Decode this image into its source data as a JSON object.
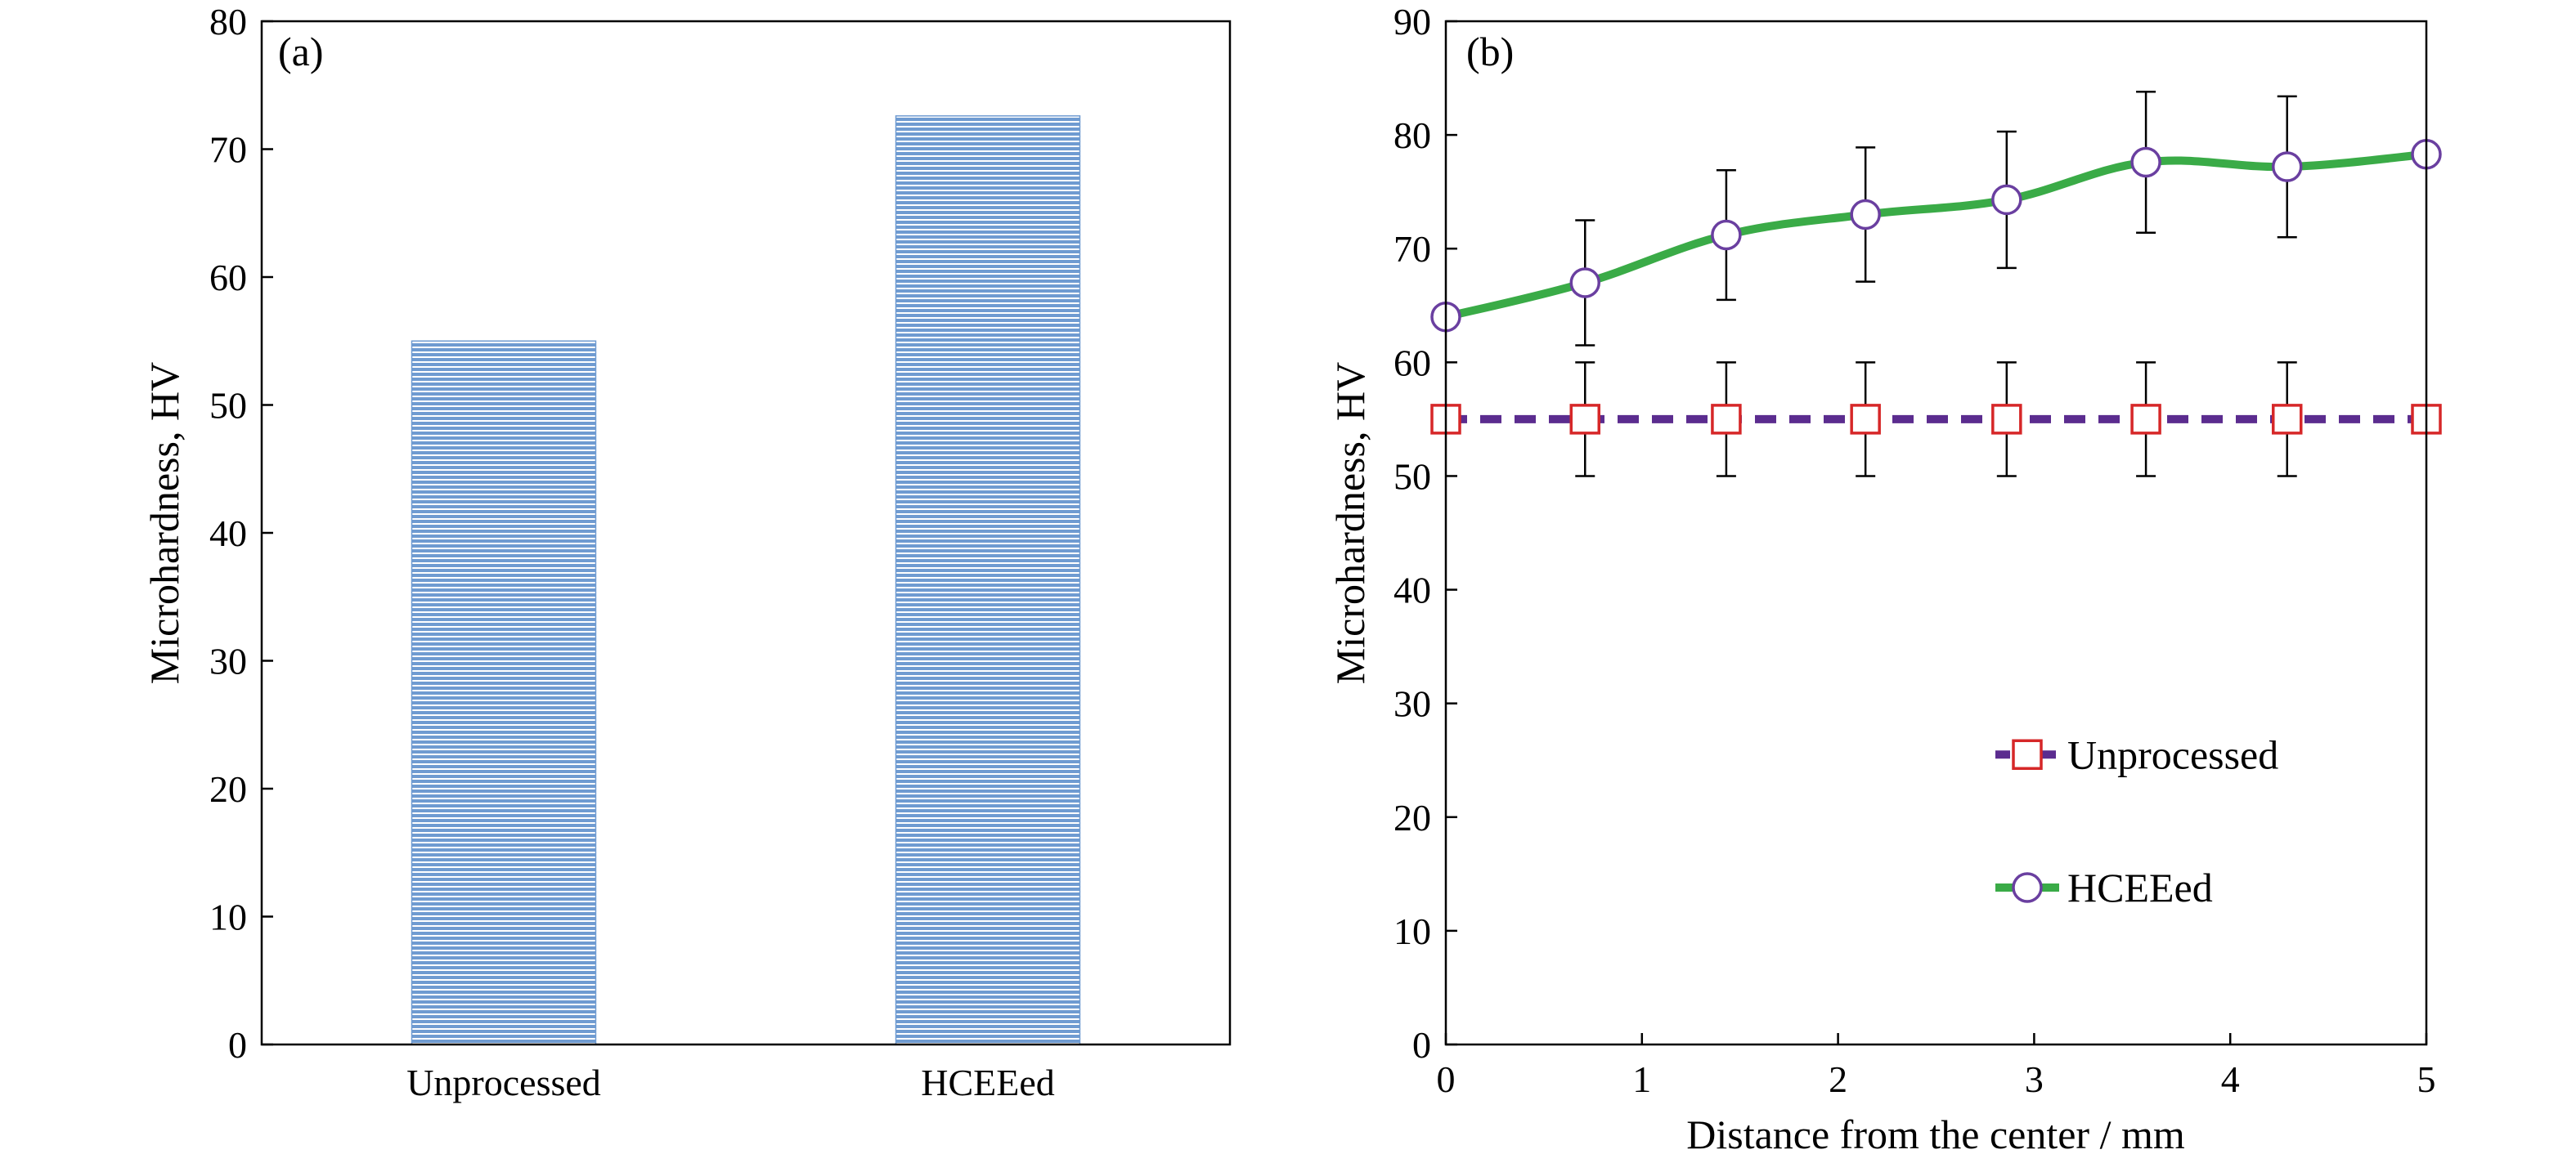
{
  "chart_data": [
    {
      "type": "bar",
      "panel_label": "(a)",
      "categories": [
        "Unprocessed",
        "HCEEed"
      ],
      "values": [
        55,
        72.6
      ],
      "xlabel": "",
      "ylabel": "Microhardness, HV",
      "ylim": [
        0,
        80
      ],
      "yticks": [
        0,
        10,
        20,
        30,
        40,
        50,
        60,
        70,
        80
      ],
      "grid": false,
      "colors": {
        "bar": "#6f9bd1",
        "bar_stripe": "#ffffff"
      }
    },
    {
      "type": "line",
      "panel_label": "(b)",
      "x": [
        0,
        0.71,
        1.43,
        2.14,
        2.86,
        3.57,
        4.29,
        5
      ],
      "series": [
        {
          "name": "Unprocessed",
          "values": [
            55,
            55,
            55,
            55,
            55,
            55,
            55,
            55
          ],
          "error": [
            null,
            5,
            5,
            5,
            5,
            5,
            5,
            null
          ],
          "line_color": "#5b2c8f",
          "line_style": "dashed",
          "marker": "square",
          "marker_color": "#d62728"
        },
        {
          "name": "HCEEed",
          "values": [
            64,
            67,
            71.2,
            73,
            74.3,
            77.6,
            77.2,
            78.3
          ],
          "error": [
            null,
            5.5,
            5.7,
            5.9,
            6,
            6.2,
            6.2,
            null
          ],
          "line_color": "#3aab47",
          "line_style": "solid",
          "marker": "circle",
          "marker_color": "#6a3fa0"
        }
      ],
      "xlabel": "Distance from the center / mm",
      "ylabel": "Microhardness, HV",
      "xlim": [
        0,
        5
      ],
      "ylim": [
        0,
        90
      ],
      "xticks": [
        0,
        1,
        2,
        3,
        4,
        5
      ],
      "yticks": [
        0,
        10,
        20,
        30,
        40,
        50,
        60,
        70,
        80,
        90
      ],
      "grid": false,
      "legend_position": "lower-right"
    }
  ]
}
